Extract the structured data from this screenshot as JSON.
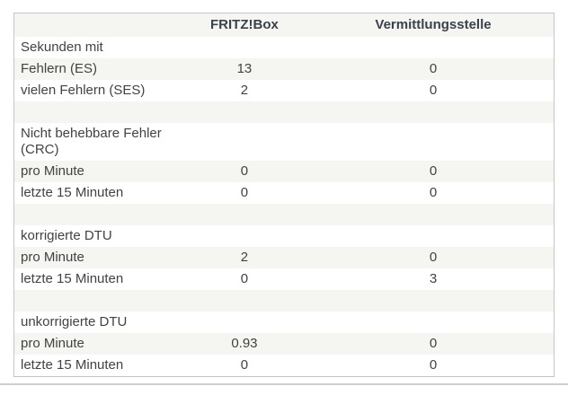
{
  "table": {
    "header": {
      "col1": "",
      "col2": "FRITZ!Box",
      "col3": "Vermittlungsstelle"
    },
    "rows": [
      {
        "type": "section",
        "label": "Sekunden mit",
        "col2": "",
        "col3": ""
      },
      {
        "type": "data",
        "label": "Fehlern (ES)",
        "col2": "13",
        "col3": "0"
      },
      {
        "type": "data",
        "label": "vielen Fehlern (SES)",
        "col2": "2",
        "col3": "0"
      },
      {
        "type": "spacer",
        "label": "",
        "col2": "",
        "col3": ""
      },
      {
        "type": "section",
        "label": "Nicht behebbare Fehler\n(CRC)",
        "col2": "",
        "col3": ""
      },
      {
        "type": "data",
        "label": "pro Minute",
        "col2": "0",
        "col3": "0"
      },
      {
        "type": "data",
        "label": "letzte 15 Minuten",
        "col2": "0",
        "col3": "0"
      },
      {
        "type": "spacer",
        "label": "",
        "col2": "",
        "col3": ""
      },
      {
        "type": "section",
        "label": "korrigierte DTU",
        "col2": "",
        "col3": ""
      },
      {
        "type": "data",
        "label": "pro Minute",
        "col2": "2",
        "col3": "0"
      },
      {
        "type": "data",
        "label": "letzte 15 Minuten",
        "col2": "0",
        "col3": "3"
      },
      {
        "type": "spacer",
        "label": "",
        "col2": "",
        "col3": ""
      },
      {
        "type": "section",
        "label": "unkorrigierte DTU",
        "col2": "",
        "col3": ""
      },
      {
        "type": "data",
        "label": "pro Minute",
        "col2": "0.93",
        "col3": "0"
      },
      {
        "type": "data",
        "label": "letzte 15 Minuten",
        "col2": "0",
        "col3": "0"
      }
    ]
  },
  "colors": {
    "stripe": "#f5f5f1",
    "row_white": "#ffffff",
    "table_border": "#c5c5c5",
    "text": "#424242",
    "header_text": "#3a424b",
    "divider": "#cfcfcf"
  }
}
